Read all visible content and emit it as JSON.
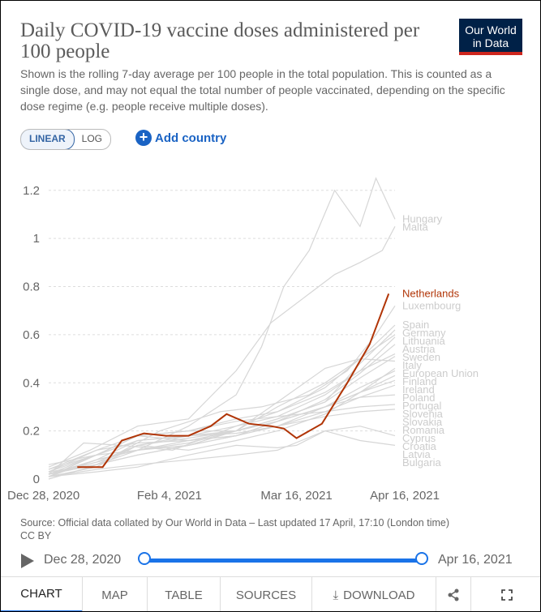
{
  "header": {
    "title": "Daily COVID-19 vaccine doses administered per 100 people",
    "subtitle": "Shown is the rolling 7-day average per 100 people in the total population. This is counted as a single dose, and may not equal the total number of people vaccinated, depending on the specific dose regime (e.g. people receive multiple doses).",
    "logo_line1": "Our World",
    "logo_line2": "in Data"
  },
  "controls": {
    "scale_linear": "LINEAR",
    "scale_log": "LOG",
    "add_country": "Add country",
    "add_icon": "plus-icon"
  },
  "footer": {
    "source": "Source: Official data collated by Our World in Data – Last updated 17 April, 17:10 (London time)",
    "license": "CC BY",
    "timeline_start": "Dec 28, 2020",
    "timeline_end": "Apr 16, 2021"
  },
  "tabs": {
    "chart": "CHART",
    "map": "MAP",
    "table": "TABLE",
    "sources": "SOURCES",
    "download": "DOWNLOAD"
  },
  "colors": {
    "highlight": "#b13507",
    "others": "#d6d6d6",
    "label_gray": "#cccccc",
    "accent": "#1a73e8"
  },
  "chart_data": {
    "type": "line",
    "x_ticks": [
      "Dec 28, 2020",
      "Feb 4, 2021",
      "Mar 16, 2021",
      "Apr 16, 2021"
    ],
    "x_tick_dates": [
      "2020-12-28",
      "2021-02-04",
      "2021-03-16",
      "2021-04-16"
    ],
    "x_range": [
      "2020-12-28",
      "2021-04-16"
    ],
    "y_ticks": [
      0,
      0.2,
      0.4,
      0.6,
      0.8,
      1,
      1.2
    ],
    "y_tick_labels": [
      "0",
      "0.2",
      "0.4",
      "0.6",
      "0.8",
      "1",
      "1.2"
    ],
    "ylim": [
      0,
      1.28
    ],
    "grid": true,
    "highlight": {
      "name": "Netherlands",
      "points": [
        [
          "2021-01-06",
          0.05
        ],
        [
          "2021-01-14",
          0.05
        ],
        [
          "2021-01-20",
          0.16
        ],
        [
          "2021-01-27",
          0.19
        ],
        [
          "2021-02-03",
          0.18
        ],
        [
          "2021-02-10",
          0.18
        ],
        [
          "2021-02-17",
          0.22
        ],
        [
          "2021-02-22",
          0.27
        ],
        [
          "2021-03-01",
          0.23
        ],
        [
          "2021-03-08",
          0.22
        ],
        [
          "2021-03-12",
          0.21
        ],
        [
          "2021-03-16",
          0.17
        ],
        [
          "2021-03-24",
          0.23
        ],
        [
          "2021-04-01",
          0.4
        ],
        [
          "2021-04-08",
          0.56
        ],
        [
          "2021-04-14",
          0.77
        ]
      ]
    },
    "series": [
      {
        "name": "Hungary",
        "points": [
          [
            "2020-12-28",
            0.0
          ],
          [
            "2021-01-10",
            0.05
          ],
          [
            "2021-01-25",
            0.12
          ],
          [
            "2021-02-10",
            0.22
          ],
          [
            "2021-02-25",
            0.35
          ],
          [
            "2021-03-05",
            0.55
          ],
          [
            "2021-03-12",
            0.8
          ],
          [
            "2021-03-20",
            0.95
          ],
          [
            "2021-03-28",
            1.2
          ],
          [
            "2021-04-05",
            1.05
          ],
          [
            "2021-04-10",
            1.25
          ],
          [
            "2021-04-16",
            1.08
          ]
        ]
      },
      {
        "name": "Malta",
        "points": [
          [
            "2020-12-28",
            0.05
          ],
          [
            "2021-01-10",
            0.12
          ],
          [
            "2021-01-25",
            0.22
          ],
          [
            "2021-02-10",
            0.25
          ],
          [
            "2021-02-25",
            0.45
          ],
          [
            "2021-03-08",
            0.65
          ],
          [
            "2021-03-18",
            0.75
          ],
          [
            "2021-03-28",
            0.85
          ],
          [
            "2021-04-05",
            0.9
          ],
          [
            "2021-04-12",
            0.95
          ],
          [
            "2021-04-16",
            1.05
          ]
        ]
      },
      {
        "name": "Luxembourg",
        "points": [
          [
            "2020-12-28",
            0.02
          ],
          [
            "2021-01-15",
            0.08
          ],
          [
            "2021-02-01",
            0.2
          ],
          [
            "2021-02-20",
            0.28
          ],
          [
            "2021-03-05",
            0.3
          ],
          [
            "2021-03-20",
            0.35
          ],
          [
            "2021-04-01",
            0.45
          ],
          [
            "2021-04-10",
            0.6
          ],
          [
            "2021-04-16",
            0.72
          ]
        ]
      },
      {
        "name": "Spain",
        "points": [
          [
            "2020-12-28",
            0.01
          ],
          [
            "2021-01-12",
            0.1
          ],
          [
            "2021-01-25",
            0.18
          ],
          [
            "2021-02-10",
            0.16
          ],
          [
            "2021-02-25",
            0.2
          ],
          [
            "2021-03-10",
            0.3
          ],
          [
            "2021-03-25",
            0.4
          ],
          [
            "2021-04-05",
            0.5
          ],
          [
            "2021-04-16",
            0.64
          ]
        ]
      },
      {
        "name": "Germany",
        "points": [
          [
            "2020-12-28",
            0.02
          ],
          [
            "2021-01-12",
            0.08
          ],
          [
            "2021-01-25",
            0.12
          ],
          [
            "2021-02-10",
            0.15
          ],
          [
            "2021-02-25",
            0.2
          ],
          [
            "2021-03-10",
            0.25
          ],
          [
            "2021-03-25",
            0.32
          ],
          [
            "2021-04-05",
            0.48
          ],
          [
            "2021-04-16",
            0.62
          ]
        ]
      },
      {
        "name": "Lithuania",
        "points": [
          [
            "2020-12-28",
            0.03
          ],
          [
            "2021-01-12",
            0.12
          ],
          [
            "2021-01-25",
            0.18
          ],
          [
            "2021-02-10",
            0.2
          ],
          [
            "2021-02-25",
            0.25
          ],
          [
            "2021-03-10",
            0.28
          ],
          [
            "2021-03-25",
            0.38
          ],
          [
            "2021-04-05",
            0.5
          ],
          [
            "2021-04-16",
            0.6
          ]
        ]
      },
      {
        "name": "Austria",
        "points": [
          [
            "2020-12-28",
            0.01
          ],
          [
            "2021-01-12",
            0.05
          ],
          [
            "2021-01-25",
            0.14
          ],
          [
            "2021-02-10",
            0.18
          ],
          [
            "2021-02-25",
            0.22
          ],
          [
            "2021-03-10",
            0.26
          ],
          [
            "2021-03-25",
            0.35
          ],
          [
            "2021-04-05",
            0.45
          ],
          [
            "2021-04-16",
            0.59
          ]
        ]
      },
      {
        "name": "Sweden",
        "points": [
          [
            "2020-12-28",
            0.04
          ],
          [
            "2021-01-12",
            0.1
          ],
          [
            "2021-01-25",
            0.12
          ],
          [
            "2021-02-10",
            0.16
          ],
          [
            "2021-02-25",
            0.18
          ],
          [
            "2021-03-10",
            0.24
          ],
          [
            "2021-03-25",
            0.33
          ],
          [
            "2021-04-05",
            0.44
          ],
          [
            "2021-04-16",
            0.56
          ]
        ]
      },
      {
        "name": "European Union",
        "points": [
          [
            "2020-12-28",
            0.02
          ],
          [
            "2021-01-12",
            0.07
          ],
          [
            "2021-01-25",
            0.14
          ],
          [
            "2021-02-10",
            0.17
          ],
          [
            "2021-02-25",
            0.2
          ],
          [
            "2021-03-10",
            0.25
          ],
          [
            "2021-03-25",
            0.32
          ],
          [
            "2021-04-05",
            0.42
          ],
          [
            "2021-04-16",
            0.51
          ]
        ]
      },
      {
        "name": "Italy",
        "points": [
          [
            "2020-12-28",
            0.02
          ],
          [
            "2021-01-08",
            0.15
          ],
          [
            "2021-01-20",
            0.14
          ],
          [
            "2021-02-05",
            0.12
          ],
          [
            "2021-02-25",
            0.22
          ],
          [
            "2021-03-10",
            0.28
          ],
          [
            "2021-03-25",
            0.36
          ],
          [
            "2021-04-05",
            0.45
          ],
          [
            "2021-04-16",
            0.52
          ]
        ]
      },
      {
        "name": "Finland",
        "points": [
          [
            "2020-12-28",
            0.03
          ],
          [
            "2021-01-12",
            0.06
          ],
          [
            "2021-01-25",
            0.1
          ],
          [
            "2021-02-10",
            0.14
          ],
          [
            "2021-02-25",
            0.2
          ],
          [
            "2021-03-10",
            0.32
          ],
          [
            "2021-03-25",
            0.46
          ],
          [
            "2021-04-05",
            0.5
          ],
          [
            "2021-04-16",
            0.49
          ]
        ]
      },
      {
        "name": "Poland",
        "points": [
          [
            "2020-12-28",
            0.01
          ],
          [
            "2021-01-12",
            0.08
          ],
          [
            "2021-01-25",
            0.16
          ],
          [
            "2021-02-10",
            0.18
          ],
          [
            "2021-02-25",
            0.19
          ],
          [
            "2021-03-10",
            0.22
          ],
          [
            "2021-03-25",
            0.3
          ],
          [
            "2021-04-05",
            0.38
          ],
          [
            "2021-04-16",
            0.45
          ]
        ]
      },
      {
        "name": "Ireland",
        "points": [
          [
            "2020-12-28",
            0.02
          ],
          [
            "2021-01-12",
            0.06
          ],
          [
            "2021-01-25",
            0.14
          ],
          [
            "2021-02-10",
            0.12
          ],
          [
            "2021-02-25",
            0.16
          ],
          [
            "2021-03-10",
            0.2
          ],
          [
            "2021-03-25",
            0.27
          ],
          [
            "2021-04-05",
            0.36
          ],
          [
            "2021-04-16",
            0.46
          ]
        ]
      },
      {
        "name": "Portugal",
        "points": [
          [
            "2020-12-28",
            0.04
          ],
          [
            "2021-01-12",
            0.12
          ],
          [
            "2021-01-25",
            0.15
          ],
          [
            "2021-02-10",
            0.16
          ],
          [
            "2021-02-25",
            0.18
          ],
          [
            "2021-03-10",
            0.24
          ],
          [
            "2021-03-25",
            0.3
          ],
          [
            "2021-04-05",
            0.36
          ],
          [
            "2021-04-16",
            0.43
          ]
        ]
      },
      {
        "name": "Slovenia",
        "points": [
          [
            "2020-12-28",
            0.03
          ],
          [
            "2021-01-12",
            0.1
          ],
          [
            "2021-01-25",
            0.18
          ],
          [
            "2021-02-10",
            0.2
          ],
          [
            "2021-02-25",
            0.2
          ],
          [
            "2021-03-10",
            0.24
          ],
          [
            "2021-03-25",
            0.3
          ],
          [
            "2021-04-05",
            0.36
          ],
          [
            "2021-04-16",
            0.41
          ]
        ]
      },
      {
        "name": "Slovakia",
        "points": [
          [
            "2020-12-28",
            0.01
          ],
          [
            "2021-01-12",
            0.08
          ],
          [
            "2021-01-25",
            0.12
          ],
          [
            "2021-02-10",
            0.14
          ],
          [
            "2021-02-25",
            0.18
          ],
          [
            "2021-03-10",
            0.22
          ],
          [
            "2021-03-25",
            0.28
          ],
          [
            "2021-04-05",
            0.34
          ],
          [
            "2021-04-16",
            0.39
          ]
        ]
      },
      {
        "name": "Romania",
        "points": [
          [
            "2020-12-28",
            0.02
          ],
          [
            "2021-01-12",
            0.1
          ],
          [
            "2021-01-25",
            0.16
          ],
          [
            "2021-02-10",
            0.18
          ],
          [
            "2021-02-25",
            0.2
          ],
          [
            "2021-03-10",
            0.24
          ],
          [
            "2021-03-25",
            0.3
          ],
          [
            "2021-04-05",
            0.34
          ],
          [
            "2021-04-16",
            0.35
          ]
        ]
      },
      {
        "name": "Cyprus",
        "points": [
          [
            "2020-12-28",
            0.06
          ],
          [
            "2021-01-12",
            0.1
          ],
          [
            "2021-01-25",
            0.18
          ],
          [
            "2021-02-10",
            0.2
          ],
          [
            "2021-02-25",
            0.24
          ],
          [
            "2021-03-10",
            0.26
          ],
          [
            "2021-03-25",
            0.28
          ],
          [
            "2021-04-05",
            0.3
          ],
          [
            "2021-04-16",
            0.31
          ]
        ]
      },
      {
        "name": "Croatia",
        "points": [
          [
            "2020-12-28",
            0.02
          ],
          [
            "2021-01-12",
            0.06
          ],
          [
            "2021-01-25",
            0.1
          ],
          [
            "2021-02-10",
            0.14
          ],
          [
            "2021-02-25",
            0.18
          ],
          [
            "2021-03-10",
            0.22
          ],
          [
            "2021-03-25",
            0.26
          ],
          [
            "2021-04-05",
            0.28
          ],
          [
            "2021-04-16",
            0.29
          ]
        ]
      },
      {
        "name": "Latvia",
        "points": [
          [
            "2020-12-28",
            0.01
          ],
          [
            "2021-01-12",
            0.04
          ],
          [
            "2021-01-25",
            0.06
          ],
          [
            "2021-02-10",
            0.08
          ],
          [
            "2021-02-25",
            0.1
          ],
          [
            "2021-03-10",
            0.12
          ],
          [
            "2021-03-25",
            0.2
          ],
          [
            "2021-04-05",
            0.22
          ],
          [
            "2021-04-16",
            0.18
          ]
        ]
      },
      {
        "name": "Bulgaria",
        "points": [
          [
            "2020-12-28",
            0.01
          ],
          [
            "2021-01-12",
            0.03
          ],
          [
            "2021-01-25",
            0.05
          ],
          [
            "2021-02-10",
            0.1
          ],
          [
            "2021-02-25",
            0.14
          ],
          [
            "2021-03-10",
            0.13
          ],
          [
            "2021-03-16",
            0.14
          ],
          [
            "2021-03-25",
            0.2
          ],
          [
            "2021-04-05",
            0.16
          ],
          [
            "2021-04-16",
            0.14
          ]
        ]
      }
    ],
    "end_labels": [
      {
        "name": "Hungary",
        "value": 1.08
      },
      {
        "name": "Malta",
        "value": 1.05
      },
      {
        "name": "Netherlands",
        "value": 0.77
      },
      {
        "name": "Luxembourg",
        "value": 0.72
      },
      {
        "name": "Spain",
        "value": 0.64
      },
      {
        "name": "Germany",
        "value": 0.62
      },
      {
        "name": "Lithuania",
        "value": 0.6
      },
      {
        "name": "Austria",
        "value": 0.59
      },
      {
        "name": "Sweden",
        "value": 0.56
      },
      {
        "name": "European Union",
        "value": 0.51
      },
      {
        "name": "Italy",
        "value": 0.52
      },
      {
        "name": "Finland",
        "value": 0.49
      },
      {
        "name": "Poland",
        "value": 0.45
      },
      {
        "name": "Ireland",
        "value": 0.46
      },
      {
        "name": "Portugal",
        "value": 0.43
      },
      {
        "name": "Slovenia",
        "value": 0.41
      },
      {
        "name": "Slovakia",
        "value": 0.39
      },
      {
        "name": "Romania",
        "value": 0.35
      },
      {
        "name": "Cyprus",
        "value": 0.31
      },
      {
        "name": "Croatia",
        "value": 0.29
      },
      {
        "name": "Latvia",
        "value": 0.18
      },
      {
        "name": "Bulgaria",
        "value": 0.14
      }
    ]
  }
}
